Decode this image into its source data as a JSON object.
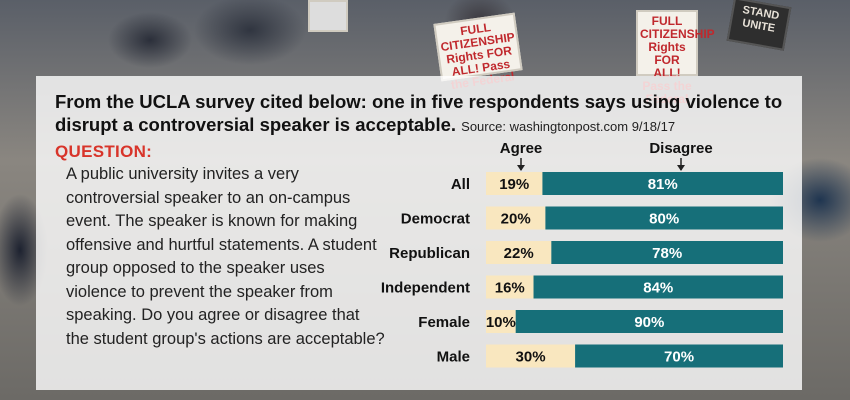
{
  "signs": {
    "left": "FULL CITIZENSHIP Rights FOR ALL! Pass the Federal",
    "right": "FULL CITIZENSHIP Rights FOR ALL! Pass the Federal",
    "dark": "STAND UNITE",
    "small": ""
  },
  "headline": {
    "text": "From the UCLA survey cited below: one in five respondents says using violence to disrupt a controversial speaker is acceptable.",
    "source": "Source: washingtonpost.com 9/18/17"
  },
  "question": {
    "heading": "QUESTION:",
    "text": "A public university invites a very controversial speaker to an on-campus event. The speaker is known for making offensive and hurtful statements. A student group opposed to the speaker uses violence to prevent the speaker from speaking. Do you agree or disagree that the student group's actions are acceptable?"
  },
  "colors": {
    "agree": "#f9e7bf",
    "disagree": "#166f79",
    "question": "#d8342a"
  },
  "chart_data": {
    "type": "bar",
    "stacked": true,
    "orientation": "horizontal",
    "categories": [
      "All",
      "Democrat",
      "Republican",
      "Independent",
      "Female",
      "Male"
    ],
    "series": [
      {
        "name": "Agree",
        "values": [
          19,
          20,
          22,
          16,
          10,
          30
        ]
      },
      {
        "name": "Disagree",
        "values": [
          81,
          80,
          78,
          84,
          90,
          70
        ]
      }
    ],
    "value_suffix": "%"
  }
}
